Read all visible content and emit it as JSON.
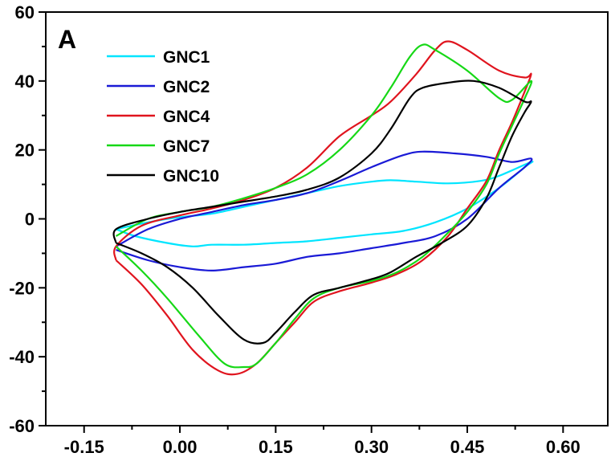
{
  "chart_data": {
    "type": "line",
    "panel_label": "A",
    "xlim": [
      -0.21,
      0.67
    ],
    "ylim": [
      -60,
      60
    ],
    "x_ticks": [
      "-0.15",
      "0.00",
      "0.15",
      "0.30",
      "0.45",
      "0.60"
    ],
    "x_tick_values": [
      -0.15,
      0.0,
      0.15,
      0.3,
      0.45,
      0.6
    ],
    "y_ticks": [
      "60",
      "40",
      "20",
      "0",
      "-20",
      "-40",
      "-60"
    ],
    "y_tick_values": [
      60,
      40,
      20,
      0,
      -20,
      -40,
      -60
    ],
    "legend_position": "top-left",
    "grid": false,
    "series": [
      {
        "name": "GNC1",
        "color": "#00e5ff",
        "points": [
          [
            -0.1,
            -3
          ],
          [
            -0.05,
            -1
          ],
          [
            0,
            0.5
          ],
          [
            0.05,
            1.5
          ],
          [
            0.1,
            3.5
          ],
          [
            0.15,
            5.5
          ],
          [
            0.2,
            7.5
          ],
          [
            0.25,
            9.5
          ],
          [
            0.3,
            10.8
          ],
          [
            0.33,
            11.2
          ],
          [
            0.37,
            10.8
          ],
          [
            0.42,
            10.3
          ],
          [
            0.47,
            11
          ],
          [
            0.5,
            12.5
          ],
          [
            0.55,
            16.5
          ],
          [
            0.54,
            15
          ],
          [
            0.5,
            9
          ],
          [
            0.45,
            3
          ],
          [
            0.4,
            -1
          ],
          [
            0.35,
            -3.5
          ],
          [
            0.3,
            -4.5
          ],
          [
            0.25,
            -5.5
          ],
          [
            0.2,
            -6.5
          ],
          [
            0.15,
            -7
          ],
          [
            0.1,
            -7.5
          ],
          [
            0.05,
            -7.5
          ],
          [
            0.02,
            -8
          ],
          [
            -0.02,
            -7
          ],
          [
            -0.07,
            -5
          ],
          [
            -0.1,
            -3
          ]
        ]
      },
      {
        "name": "GNC2",
        "color": "#1a1ad6",
        "points": [
          [
            -0.1,
            -8
          ],
          [
            -0.05,
            -3
          ],
          [
            0,
            0
          ],
          [
            0.05,
            2
          ],
          [
            0.1,
            4
          ],
          [
            0.15,
            5.5
          ],
          [
            0.2,
            7.5
          ],
          [
            0.25,
            11
          ],
          [
            0.3,
            15
          ],
          [
            0.35,
            18.5
          ],
          [
            0.38,
            19.5
          ],
          [
            0.43,
            19
          ],
          [
            0.48,
            18
          ],
          [
            0.52,
            16.5
          ],
          [
            0.55,
            17.5
          ],
          [
            0.54,
            15
          ],
          [
            0.5,
            9
          ],
          [
            0.45,
            0
          ],
          [
            0.4,
            -5
          ],
          [
            0.35,
            -7
          ],
          [
            0.3,
            -8.5
          ],
          [
            0.25,
            -10
          ],
          [
            0.2,
            -11
          ],
          [
            0.15,
            -13
          ],
          [
            0.1,
            -14
          ],
          [
            0.05,
            -15
          ],
          [
            0,
            -14
          ],
          [
            -0.05,
            -12
          ],
          [
            -0.1,
            -9
          ]
        ]
      },
      {
        "name": "GNC4",
        "color": "#e0141e",
        "points": [
          [
            -0.1,
            -12
          ],
          [
            -0.1,
            -8
          ],
          [
            -0.06,
            -2
          ],
          [
            0,
            1
          ],
          [
            0.05,
            3
          ],
          [
            0.1,
            5.5
          ],
          [
            0.15,
            9
          ],
          [
            0.2,
            15
          ],
          [
            0.25,
            24
          ],
          [
            0.3,
            30
          ],
          [
            0.33,
            34
          ],
          [
            0.37,
            42
          ],
          [
            0.4,
            49
          ],
          [
            0.42,
            51.5
          ],
          [
            0.45,
            49
          ],
          [
            0.5,
            43
          ],
          [
            0.54,
            41
          ],
          [
            0.55,
            42
          ],
          [
            0.54,
            37
          ],
          [
            0.52,
            28
          ],
          [
            0.5,
            20
          ],
          [
            0.48,
            11
          ],
          [
            0.45,
            3
          ],
          [
            0.42,
            -5
          ],
          [
            0.38,
            -12
          ],
          [
            0.34,
            -16
          ],
          [
            0.3,
            -18.5
          ],
          [
            0.25,
            -21
          ],
          [
            0.21,
            -24
          ],
          [
            0.18,
            -30
          ],
          [
            0.15,
            -36
          ],
          [
            0.12,
            -42
          ],
          [
            0.09,
            -45
          ],
          [
            0.06,
            -44
          ],
          [
            0.02,
            -38
          ],
          [
            -0.02,
            -28
          ],
          [
            -0.06,
            -19
          ],
          [
            -0.1,
            -12
          ]
        ]
      },
      {
        "name": "GNC7",
        "color": "#16d816",
        "points": [
          [
            -0.1,
            -5
          ],
          [
            -0.05,
            0
          ],
          [
            0,
            2
          ],
          [
            0.05,
            3.5
          ],
          [
            0.1,
            6
          ],
          [
            0.15,
            9
          ],
          [
            0.2,
            13
          ],
          [
            0.25,
            20
          ],
          [
            0.3,
            30
          ],
          [
            0.33,
            38
          ],
          [
            0.36,
            47
          ],
          [
            0.38,
            50.5
          ],
          [
            0.4,
            49
          ],
          [
            0.45,
            43
          ],
          [
            0.5,
            35
          ],
          [
            0.52,
            34.5
          ],
          [
            0.55,
            40
          ],
          [
            0.54,
            35
          ],
          [
            0.52,
            27
          ],
          [
            0.5,
            19
          ],
          [
            0.48,
            10
          ],
          [
            0.45,
            2
          ],
          [
            0.42,
            -4
          ],
          [
            0.38,
            -11
          ],
          [
            0.34,
            -15.5
          ],
          [
            0.3,
            -18
          ],
          [
            0.25,
            -20
          ],
          [
            0.21,
            -23
          ],
          [
            0.18,
            -29
          ],
          [
            0.15,
            -36
          ],
          [
            0.12,
            -42
          ],
          [
            0.1,
            -43
          ],
          [
            0.07,
            -42
          ],
          [
            0.03,
            -34
          ],
          [
            -0.02,
            -23
          ],
          [
            -0.06,
            -15
          ],
          [
            -0.1,
            -8
          ]
        ]
      },
      {
        "name": "GNC10",
        "color": "#000000",
        "points": [
          [
            -0.1,
            -7
          ],
          [
            -0.1,
            -3
          ],
          [
            -0.05,
            0
          ],
          [
            0,
            2
          ],
          [
            0.05,
            3.5
          ],
          [
            0.1,
            5
          ],
          [
            0.15,
            6.5
          ],
          [
            0.2,
            8.5
          ],
          [
            0.25,
            12
          ],
          [
            0.3,
            19
          ],
          [
            0.33,
            26
          ],
          [
            0.36,
            35
          ],
          [
            0.38,
            38
          ],
          [
            0.42,
            39.5
          ],
          [
            0.46,
            40
          ],
          [
            0.5,
            38
          ],
          [
            0.54,
            34
          ],
          [
            0.55,
            34
          ],
          [
            0.54,
            31
          ],
          [
            0.52,
            24
          ],
          [
            0.5,
            15
          ],
          [
            0.48,
            6
          ],
          [
            0.45,
            -2
          ],
          [
            0.41,
            -7
          ],
          [
            0.37,
            -11
          ],
          [
            0.33,
            -15.5
          ],
          [
            0.3,
            -17.5
          ],
          [
            0.25,
            -20
          ],
          [
            0.21,
            -22
          ],
          [
            0.18,
            -27
          ],
          [
            0.15,
            -33
          ],
          [
            0.13,
            -36
          ],
          [
            0.1,
            -35
          ],
          [
            0.06,
            -28
          ],
          [
            0.02,
            -20
          ],
          [
            -0.02,
            -14
          ],
          [
            -0.06,
            -10
          ],
          [
            -0.1,
            -7
          ]
        ]
      }
    ]
  }
}
